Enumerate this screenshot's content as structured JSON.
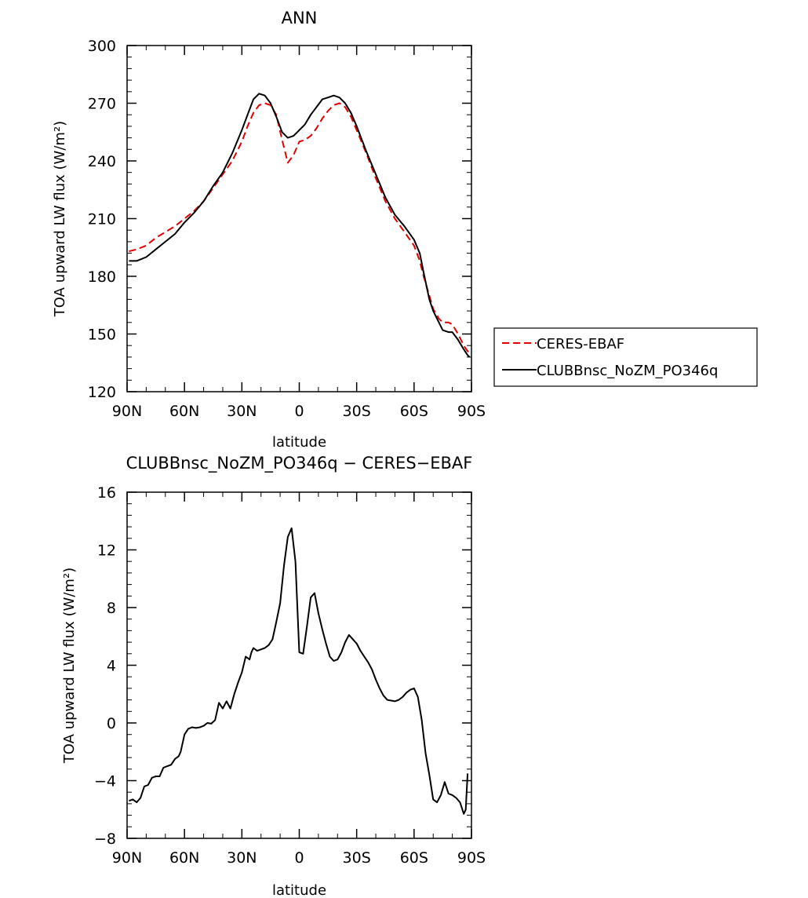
{
  "chart_data": [
    {
      "type": "line",
      "title": "ANN",
      "xlabel": "latitude",
      "ylabel": "TOA upward LW flux (W/m²)",
      "ylim": [
        120,
        300
      ],
      "yticks": [
        120,
        150,
        180,
        210,
        240,
        270,
        300
      ],
      "xlim": [
        90,
        -90
      ],
      "xticks": [
        90,
        60,
        30,
        0,
        -30,
        -60,
        -90
      ],
      "xtick_labels": [
        "90N",
        "60N",
        "30N",
        "0",
        "30S",
        "60S",
        "90S"
      ],
      "legend_position": "right",
      "series": [
        {
          "name": "CERES-EBAF",
          "color": "#e00000",
          "dash": "dashed",
          "x": [
            89,
            85,
            80,
            75,
            70,
            65,
            60,
            55,
            50,
            45,
            40,
            35,
            30,
            27,
            24,
            21,
            18,
            15,
            12,
            9,
            6,
            3,
            0,
            -3,
            -6,
            -9,
            -12,
            -15,
            -18,
            -21,
            -24,
            -27,
            -30,
            -35,
            -40,
            -45,
            -50,
            -55,
            -60,
            -63,
            -65,
            -68,
            -70,
            -73,
            -75,
            -78,
            -80,
            -83,
            -86,
            -88,
            -89
          ],
          "y": [
            193,
            194,
            196,
            200,
            203,
            206,
            210,
            214,
            219,
            226,
            233,
            240,
            250,
            258,
            265,
            269,
            270,
            269,
            264,
            251,
            239,
            243,
            250,
            251,
            253,
            257,
            262,
            266,
            269,
            270,
            268,
            263,
            256,
            244,
            231,
            219,
            210,
            203,
            196,
            188,
            180,
            170,
            163,
            158,
            156,
            156,
            155,
            150,
            144,
            141,
            141
          ]
        },
        {
          "name": "CLUBBnsc_NoZM_PO346q",
          "color": "#000000",
          "dash": "solid",
          "x": [
            89,
            85,
            80,
            75,
            70,
            65,
            60,
            55,
            50,
            45,
            40,
            35,
            30,
            27,
            24,
            21,
            18,
            15,
            12,
            9,
            6,
            3,
            0,
            -3,
            -6,
            -9,
            -12,
            -15,
            -18,
            -21,
            -24,
            -27,
            -30,
            -35,
            -40,
            -45,
            -50,
            -55,
            -60,
            -63,
            -65,
            -68,
            -70,
            -73,
            -75,
            -78,
            -80,
            -83,
            -86,
            -88,
            -89
          ],
          "y": [
            188,
            188,
            190,
            194,
            198,
            202,
            208,
            213,
            219,
            227,
            234,
            244,
            256,
            264,
            272,
            275,
            274,
            270,
            263,
            255,
            252,
            253,
            256,
            259,
            264,
            268,
            272,
            273,
            274,
            273,
            270,
            265,
            258,
            245,
            233,
            221,
            212,
            206,
            199,
            192,
            182,
            168,
            162,
            156,
            152,
            151,
            151,
            147,
            142,
            139,
            138
          ]
        }
      ]
    },
    {
      "type": "line",
      "title": "CLUBBnsc_NoZM_PO346q − CERES−EBAF",
      "xlabel": "latitude",
      "ylabel": "TOA upward LW flux (W/m²)",
      "ylim": [
        -8,
        16
      ],
      "yticks": [
        -8,
        -4,
        0,
        4,
        8,
        12,
        16
      ],
      "ytick_labels": [
        "−8",
        "−4",
        "0",
        "4",
        "8",
        "12",
        "16"
      ],
      "xlim": [
        90,
        -90
      ],
      "xticks": [
        90,
        60,
        30,
        0,
        -30,
        -60,
        -90
      ],
      "xtick_labels": [
        "90N",
        "60N",
        "30N",
        "0",
        "30S",
        "60S",
        "90S"
      ],
      "series": [
        {
          "color": "#000000",
          "dash": "solid",
          "x": [
            89,
            87,
            85,
            83,
            81,
            79,
            77,
            75,
            73,
            71,
            69,
            67,
            65,
            63,
            62,
            60,
            58,
            56,
            54,
            52,
            50,
            48,
            46,
            44,
            42,
            40,
            38,
            36,
            34,
            32,
            30,
            28,
            26,
            25,
            24,
            22,
            20,
            18,
            16,
            14,
            12,
            10,
            8,
            6,
            4,
            2,
            0,
            -2,
            -4,
            -6,
            -8,
            -10,
            -12,
            -14,
            -16,
            -18,
            -20,
            -22,
            -24,
            -26,
            -28,
            -30,
            -32,
            -34,
            -36,
            -38,
            -40,
            -42,
            -44,
            -46,
            -48,
            -50,
            -52,
            -54,
            -56,
            -58,
            -60,
            -62,
            -64,
            -66,
            -68,
            -70,
            -72,
            -74,
            -76,
            -78,
            -80,
            -82,
            -84,
            -86,
            -87,
            -88
          ],
          "y": [
            -5.4,
            -5.3,
            -5.5,
            -5.2,
            -4.4,
            -4.3,
            -3.8,
            -3.7,
            -3.7,
            -3.1,
            -3.0,
            -2.9,
            -2.5,
            -2.3,
            -2.0,
            -0.8,
            -0.4,
            -0.3,
            -0.35,
            -0.3,
            -0.2,
            0.0,
            -0.05,
            0.2,
            1.4,
            1.0,
            1.5,
            1.0,
            2.0,
            2.8,
            3.5,
            4.6,
            4.4,
            4.9,
            5.2,
            5.0,
            5.1,
            5.2,
            5.4,
            5.8,
            7.0,
            8.3,
            10.9,
            12.9,
            13.5,
            11.2,
            4.9,
            4.8,
            6.7,
            8.7,
            9.0,
            7.6,
            6.5,
            5.5,
            4.6,
            4.3,
            4.4,
            4.9,
            5.6,
            6.1,
            5.8,
            5.5,
            5.0,
            4.6,
            4.2,
            3.7,
            3.0,
            2.4,
            1.9,
            1.6,
            1.55,
            1.5,
            1.6,
            1.8,
            2.1,
            2.3,
            2.4,
            1.8,
            0.2,
            -2.1,
            -3.6,
            -5.3,
            -5.5,
            -5.0,
            -4.1,
            -4.9,
            -5.0,
            -5.2,
            -5.5,
            -6.3,
            -6.0,
            -3.5
          ]
        }
      ]
    }
  ]
}
